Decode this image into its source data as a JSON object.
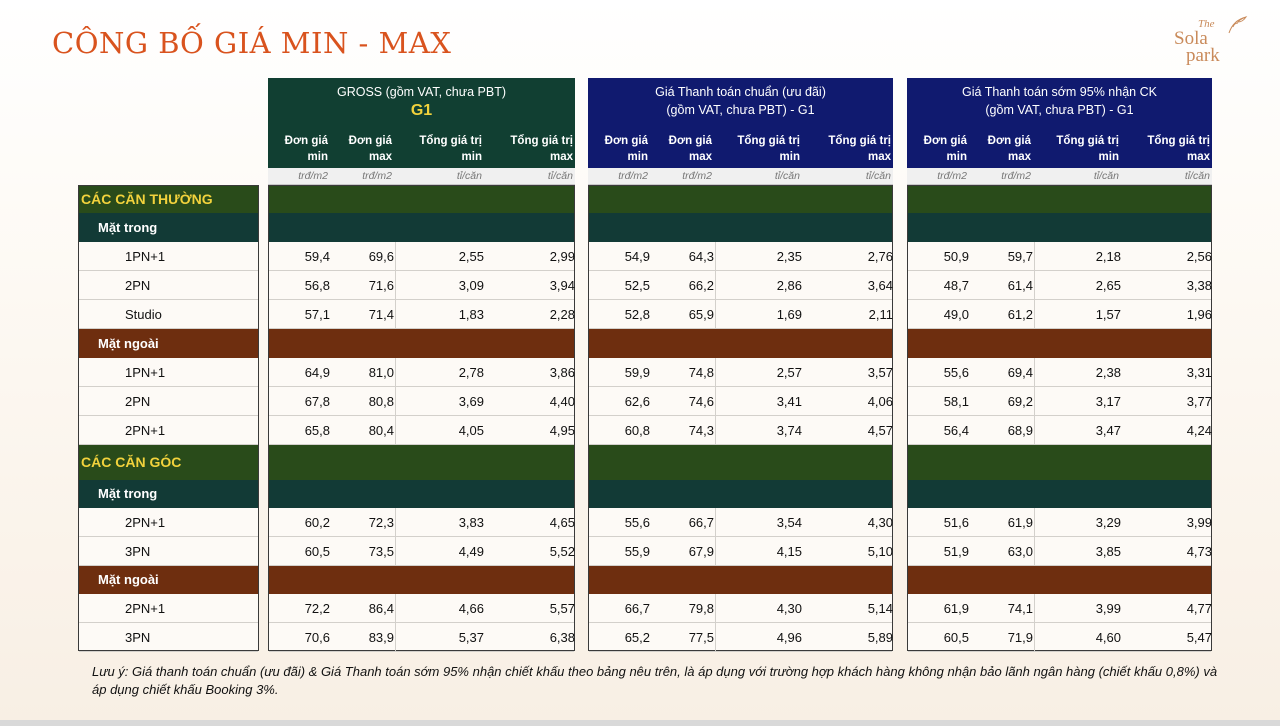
{
  "title": "CÔNG BỐ GIÁ MIN - MAX",
  "logo": {
    "line1": "The",
    "line2": "Sola",
    "line3": "park"
  },
  "groups": [
    {
      "line1": "GROSS (gồm VAT, chưa PBT)",
      "line2": "G1",
      "color": "#113f32"
    },
    {
      "line1": "Giá Thanh toán chuẩn (ưu đãi)",
      "line2": "(gồm VAT, chưa PBT) - G1",
      "color": "#101a6f"
    },
    {
      "line1": "Giá Thanh toán sớm 95% nhận CK",
      "line2": "(gồm VAT, chưa PBT) - G1",
      "color": "#101a6f"
    }
  ],
  "col_headers": [
    {
      "l1": "Đơn giá",
      "l2": "min"
    },
    {
      "l1": "Đơn giá",
      "l2": "max"
    },
    {
      "l1": "Tổng giá trị",
      "l2": "min"
    },
    {
      "l1": "Tổng giá trị",
      "l2": "max"
    }
  ],
  "units": [
    "trđ/m2",
    "trđ/m2",
    "tỉ/căn",
    "tỉ/căn"
  ],
  "rows": [
    {
      "type": "sec",
      "label": "CÁC CĂN THƯỜNG"
    },
    {
      "type": "sub-t",
      "label": "Mặt trong"
    },
    {
      "type": "data",
      "label": "1PN+1",
      "values": [
        [
          "59,4",
          "69,6",
          "2,55",
          "2,99"
        ],
        [
          "54,9",
          "64,3",
          "2,35",
          "2,76"
        ],
        [
          "50,9",
          "59,7",
          "2,18",
          "2,56"
        ]
      ]
    },
    {
      "type": "data",
      "label": "2PN",
      "values": [
        [
          "56,8",
          "71,6",
          "3,09",
          "3,94"
        ],
        [
          "52,5",
          "66,2",
          "2,86",
          "3,64"
        ],
        [
          "48,7",
          "61,4",
          "2,65",
          "3,38"
        ]
      ]
    },
    {
      "type": "data",
      "label": "Studio",
      "values": [
        [
          "57,1",
          "71,4",
          "1,83",
          "2,28"
        ],
        [
          "52,8",
          "65,9",
          "1,69",
          "2,11"
        ],
        [
          "49,0",
          "61,2",
          "1,57",
          "1,96"
        ]
      ]
    },
    {
      "type": "sub-n",
      "label": "Mặt ngoài"
    },
    {
      "type": "data",
      "label": "1PN+1",
      "values": [
        [
          "64,9",
          "81,0",
          "2,78",
          "3,86"
        ],
        [
          "59,9",
          "74,8",
          "2,57",
          "3,57"
        ],
        [
          "55,6",
          "69,4",
          "2,38",
          "3,31"
        ]
      ]
    },
    {
      "type": "data",
      "label": "2PN",
      "values": [
        [
          "67,8",
          "80,8",
          "3,69",
          "4,40"
        ],
        [
          "62,6",
          "74,6",
          "3,41",
          "4,06"
        ],
        [
          "58,1",
          "69,2",
          "3,17",
          "3,77"
        ]
      ]
    },
    {
      "type": "data",
      "label": "2PN+1",
      "values": [
        [
          "65,8",
          "80,4",
          "4,05",
          "4,95"
        ],
        [
          "60,8",
          "74,3",
          "3,74",
          "4,57"
        ],
        [
          "56,4",
          "68,9",
          "3,47",
          "4,24"
        ]
      ]
    },
    {
      "type": "sec",
      "label": "CÁC CĂN GÓC"
    },
    {
      "type": "sub-t",
      "label": "Mặt trong"
    },
    {
      "type": "data",
      "label": "2PN+1",
      "values": [
        [
          "60,2",
          "72,3",
          "3,83",
          "4,65"
        ],
        [
          "55,6",
          "66,7",
          "3,54",
          "4,30"
        ],
        [
          "51,6",
          "61,9",
          "3,29",
          "3,99"
        ]
      ]
    },
    {
      "type": "data",
      "label": "3PN",
      "values": [
        [
          "60,5",
          "73,5",
          "4,49",
          "5,52"
        ],
        [
          "55,9",
          "67,9",
          "4,15",
          "5,10"
        ],
        [
          "51,9",
          "63,0",
          "3,85",
          "4,73"
        ]
      ]
    },
    {
      "type": "sub-n",
      "label": "Mặt ngoài"
    },
    {
      "type": "data",
      "label": "2PN+1",
      "values": [
        [
          "72,2",
          "86,4",
          "4,66",
          "5,57"
        ],
        [
          "66,7",
          "79,8",
          "4,30",
          "5,14"
        ],
        [
          "61,9",
          "74,1",
          "3,99",
          "4,77"
        ]
      ]
    },
    {
      "type": "data",
      "label": "3PN",
      "values": [
        [
          "70,6",
          "83,9",
          "5,37",
          "6,38"
        ],
        [
          "65,2",
          "77,5",
          "4,96",
          "5,89"
        ],
        [
          "60,5",
          "71,9",
          "4,60",
          "5,47"
        ]
      ]
    }
  ],
  "note": "Lưu ý: Giá thanh toán chuẩn (ưu đãi) & Giá Thanh toán sớm 95% nhận chiết khấu theo bảng nêu trên, là áp dụng với trường hợp khách hàng không nhận bảo lãnh ngân hàng (chiết khấu 0,8%) và áp dụng chiết khấu Booking 3%."
}
